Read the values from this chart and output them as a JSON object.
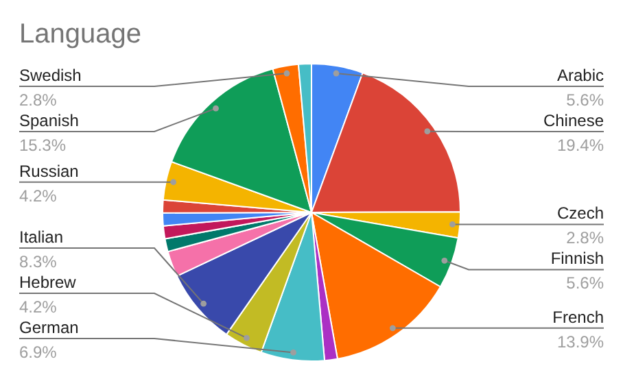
{
  "chart_data": {
    "type": "pie",
    "title": "Language",
    "categories": [
      "Arabic",
      "Chinese",
      "Czech",
      "Finnish",
      "French",
      null,
      "German",
      "Hebrew",
      "Italian",
      null,
      null,
      null,
      null,
      null,
      "Russian",
      "Spanish",
      "Swedish",
      null
    ],
    "values": [
      5.6,
      19.4,
      2.8,
      5.6,
      13.9,
      1.4,
      6.9,
      4.2,
      8.3,
      2.8,
      1.4,
      1.4,
      1.4,
      1.4,
      4.2,
      15.3,
      2.8,
      1.4
    ],
    "value_labels": [
      "5.6%",
      "19.4%",
      "2.8%",
      "5.6%",
      "13.9%",
      null,
      "6.9%",
      "4.2%",
      "8.3%",
      null,
      null,
      null,
      null,
      null,
      "4.2%",
      "15.3%",
      "2.8%",
      null
    ],
    "colors": [
      "#4285f4",
      "#db4437",
      "#f4b400",
      "#0f9d58",
      "#ff6d00",
      "#ab30c4",
      "#46bdc6",
      "#c2bb24",
      "#3949ab",
      "#f571a9",
      "#00796b",
      "#c2185b",
      "#4285f4",
      "#db4437",
      "#f4b400",
      "#0f9d58",
      "#ff6d00",
      "#46bdc6"
    ],
    "legend": false
  }
}
